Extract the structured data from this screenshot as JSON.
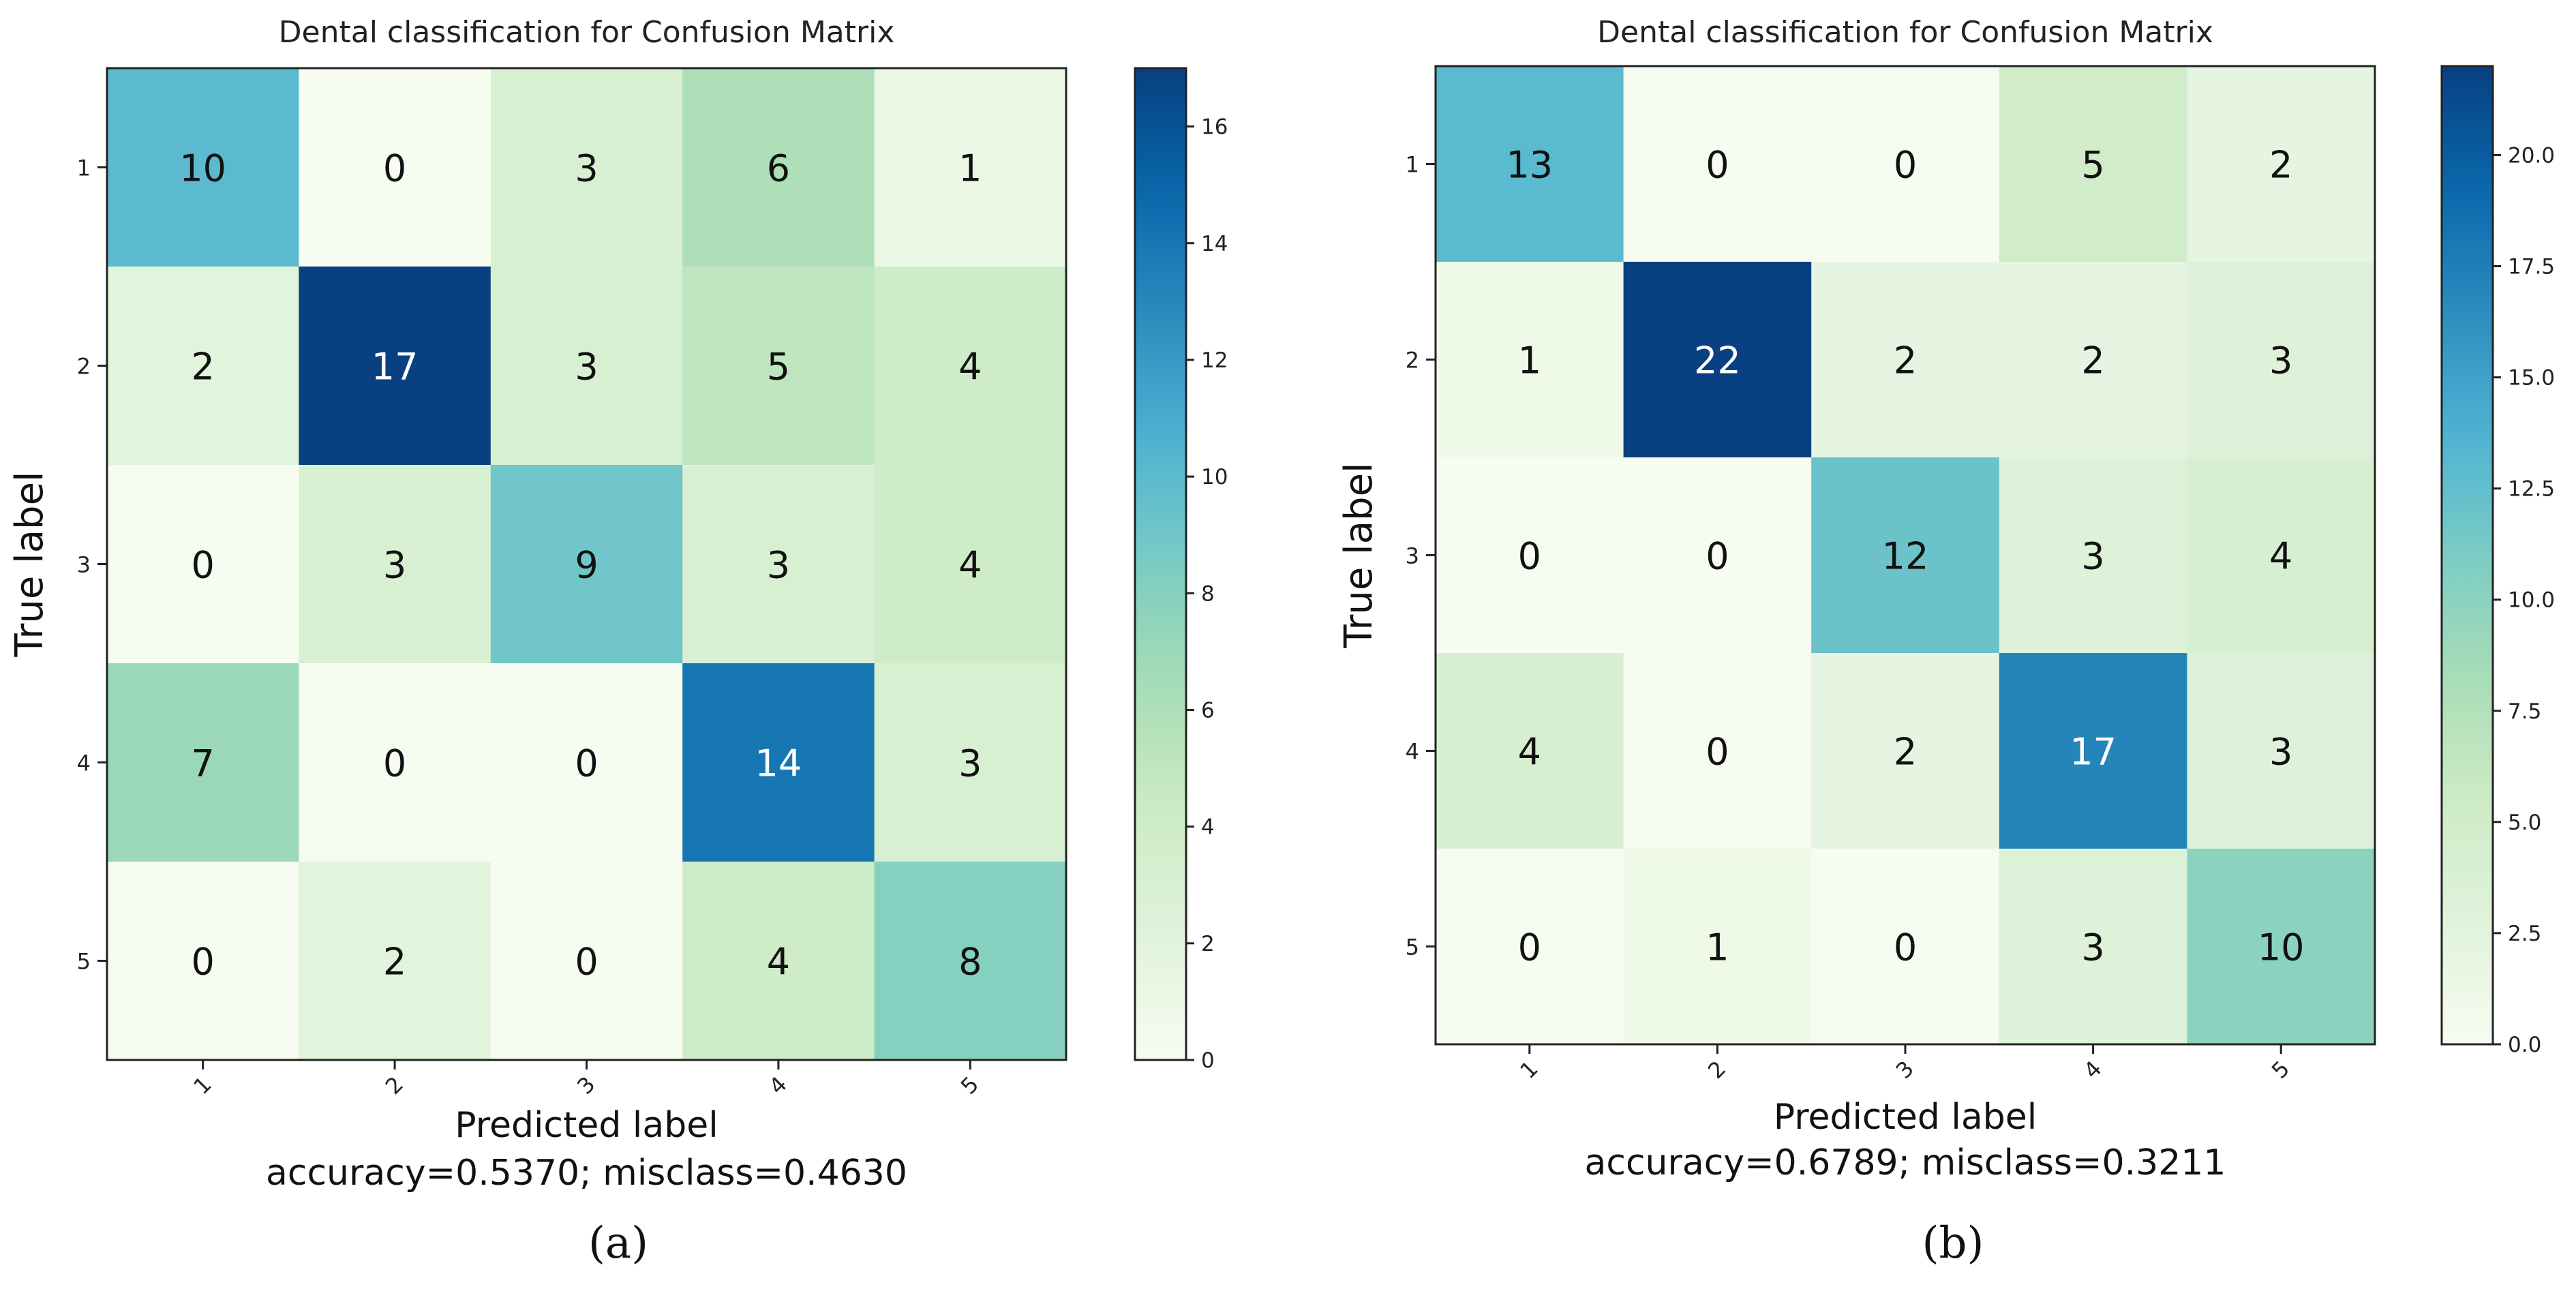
{
  "chart_data": [
    {
      "type": "heatmap",
      "panel_label": "(a)",
      "panel_label_letter": "a",
      "title": "Dental classification for Confusion Matrix",
      "xlabel": "Predicted label",
      "ylabel": "True label",
      "caption": "accuracy=0.5370; misclass=0.4630",
      "x_categories": [
        "1",
        "2",
        "3",
        "4",
        "5"
      ],
      "y_categories": [
        "1",
        "2",
        "3",
        "4",
        "5"
      ],
      "values": [
        [
          10,
          0,
          3,
          6,
          1
        ],
        [
          2,
          17,
          3,
          5,
          4
        ],
        [
          0,
          3,
          9,
          3,
          4
        ],
        [
          7,
          0,
          0,
          14,
          3
        ],
        [
          0,
          2,
          0,
          4,
          8
        ]
      ],
      "colormap": "GnBu",
      "colorbar_range": [
        0,
        17
      ],
      "colorbar_ticks": [
        0,
        2,
        4,
        6,
        8,
        10,
        12,
        14,
        16
      ],
      "colorbar_tick_labels": [
        "0",
        "2",
        "4",
        "6",
        "8",
        "10",
        "12",
        "14",
        "16"
      ]
    },
    {
      "type": "heatmap",
      "panel_label": "(b)",
      "panel_label_letter": "b",
      "title": "Dental classification for Confusion Matrix",
      "xlabel": "Predicted label",
      "ylabel": "True label",
      "caption": "accuracy=0.6789; misclass=0.3211",
      "x_categories": [
        "1",
        "2",
        "3",
        "4",
        "5"
      ],
      "y_categories": [
        "1",
        "2",
        "3",
        "4",
        "5"
      ],
      "values": [
        [
          13,
          0,
          0,
          5,
          2
        ],
        [
          1,
          22,
          2,
          2,
          3
        ],
        [
          0,
          0,
          12,
          3,
          4
        ],
        [
          4,
          0,
          2,
          17,
          3
        ],
        [
          0,
          1,
          0,
          3,
          10
        ]
      ],
      "colormap": "GnBu",
      "colorbar_range": [
        0,
        22
      ],
      "colorbar_ticks": [
        0,
        2.5,
        5,
        7.5,
        10,
        12.5,
        15,
        17.5,
        20
      ],
      "colorbar_tick_labels": [
        "0.0",
        "2.5",
        "5.0",
        "7.5",
        "10.0",
        "12.5",
        "15.0",
        "17.5",
        "20.0"
      ]
    }
  ]
}
